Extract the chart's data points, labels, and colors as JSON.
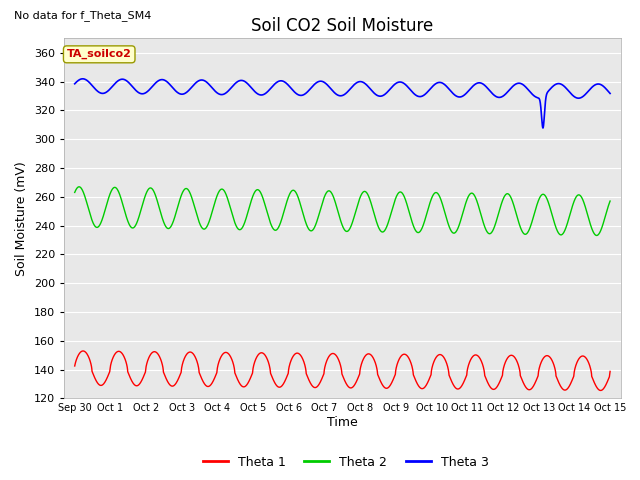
{
  "title": "Soil CO2 Soil Moisture",
  "no_data_text": "No data for f_Theta_SM4",
  "legend_box_text": "TA_soilco2",
  "ylabel": "Soil Moisture (mV)",
  "xlabel": "Time",
  "ylim": [
    120,
    370
  ],
  "yticks": [
    120,
    140,
    160,
    180,
    200,
    220,
    240,
    260,
    280,
    300,
    320,
    340,
    360
  ],
  "background_color": "#e8e8e8",
  "figure_color": "#ffffff",
  "title_fontsize": 12,
  "axis_fontsize": 9,
  "tick_fontsize": 8,
  "legend_box_color": "#ffffcc",
  "legend_box_text_color": "#cc0000",
  "xtick_labels": [
    "Sep 30",
    "Oct 1",
    "Oct 2",
    "Oct 3",
    "Oct 4",
    "Oct 5",
    "Oct 6",
    "Oct 7",
    "Oct 8",
    "Oct 9",
    "Oct 10",
    "Oct 11",
    "Oct 12",
    "Oct 13",
    "Oct 14",
    "Oct 15"
  ]
}
